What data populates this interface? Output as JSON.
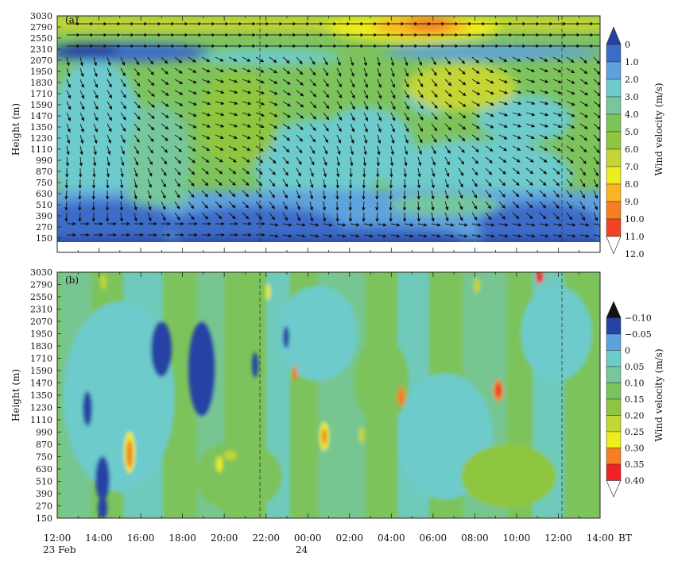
{
  "chart_data": [
    {
      "panel": "(a)",
      "type": "heatmap",
      "variant": "filled contour with wind vectors",
      "ylabel": "Height (m)",
      "y_ticks": [
        150,
        270,
        390,
        510,
        630,
        750,
        870,
        990,
        1110,
        1230,
        1350,
        1470,
        1590,
        1710,
        1830,
        1950,
        2070,
        2310,
        2550,
        2790,
        3030
      ],
      "x_ticks": [
        "12:00",
        "14:00",
        "16:00",
        "18:00",
        "20:00",
        "22:00",
        "00:00",
        "02:00",
        "04:00",
        "06:00",
        "08:00",
        "10:00",
        "12:00",
        "14:00"
      ],
      "x_range_hours": [
        0,
        26
      ],
      "colorbar_label": "Wind velocity (m/s)",
      "colorbar_levels": [
        "0",
        "1.0",
        "2.0",
        "3.0",
        "4.0",
        "5.0",
        "6.0",
        "7.0",
        "8.0",
        "9.0",
        "10.0",
        "11.0",
        "12.0"
      ],
      "colorbar_colors": [
        "#2642a4",
        "#3d6cc8",
        "#5ea2dd",
        "#6dcbcc",
        "#76c79b",
        "#7dc35c",
        "#8ec63f",
        "#c3d635",
        "#eded1f",
        "#f9b522",
        "#f57f22",
        "#ef4423",
        "#ffffff"
      ],
      "vertical_markers_hours": [
        9.9,
        24.5
      ],
      "features": [
        {
          "desc": "weak wind layer near surface",
          "x_hours": [
            0,
            26
          ],
          "y_m": [
            150,
            630
          ],
          "level": "0-1.0"
        },
        {
          "desc": "low wind band aloft",
          "x_hours": [
            0,
            7.5
          ],
          "y_m": [
            2070,
            2310
          ],
          "level": "0-1.0"
        },
        {
          "desc": "wind maximum",
          "x_hours": [
            17.5,
            19.5
          ],
          "y_m": [
            2550,
            3030
          ],
          "level": "10.0-11.0"
        }
      ]
    },
    {
      "panel": "(b)",
      "type": "heatmap",
      "variant": "filled contour",
      "ylabel": "Height (m)",
      "y_ticks": [
        150,
        270,
        390,
        510,
        630,
        750,
        870,
        990,
        1110,
        1230,
        1350,
        1470,
        1590,
        1710,
        1830,
        1950,
        2070,
        2310,
        2550,
        2790,
        3030
      ],
      "x_ticks": [
        "12:00",
        "14:00",
        "16:00",
        "18:00",
        "20:00",
        "22:00",
        "00:00",
        "02:00",
        "04:00",
        "06:00",
        "08:00",
        "10:00",
        "12:00",
        "14:00"
      ],
      "x_range_hours": [
        0,
        26
      ],
      "colorbar_label": "Wind velocity (m/s)",
      "colorbar_levels": [
        "−0.10",
        "−0.05",
        "0",
        "0.05",
        "0.10",
        "0.15",
        "0.20",
        "0.25",
        "0.30",
        "0.35",
        "0.40"
      ],
      "colorbar_colors": [
        "#111111",
        "#2642a4",
        "#5ea2dd",
        "#6dcbcc",
        "#76c79b",
        "#7dc35c",
        "#8ec63f",
        "#c3d635",
        "#eded1f",
        "#f57f22",
        "#ef2323",
        "#ffffff"
      ],
      "vertical_markers_hours": [
        9.9,
        24.5
      ],
      "features": [
        {
          "desc": "negative (downward) cell",
          "x_hours": [
            4.6,
            5.3
          ],
          "y_m": [
            150,
            750
          ],
          "level": "-0.10 to -0.05"
        },
        {
          "desc": "negative (downward) cell",
          "x_hours": [
            4.7,
            5.7
          ],
          "y_m": [
            1470,
            2070
          ],
          "level": "-0.10 to -0.05"
        },
        {
          "desc": "negative (downward) cell",
          "x_hours": [
            6.3,
            7.5
          ],
          "y_m": [
            1110,
            2310
          ],
          "level": "-0.10 to -0.05"
        },
        {
          "desc": "positive (upward) maximum",
          "x_hours": [
            3.5,
            3.8
          ],
          "y_m": [
            630,
            990
          ],
          "level": "0.35-0.40"
        },
        {
          "desc": "positive (upward) maximum",
          "x_hours": [
            12.8,
            13.1
          ],
          "y_m": [
            750,
            990
          ],
          "level": "0.35-0.40"
        },
        {
          "desc": "positive (upward) maximum",
          "x_hours": [
            21.0,
            21.4
          ],
          "y_m": [
            1350,
            1590
          ],
          "level": "0.35-0.40"
        },
        {
          "desc": "positive (upward) maximum",
          "x_hours": [
            23.4,
            23.8
          ],
          "y_m": [
            2790,
            3030
          ],
          "level": "0.35-0.40"
        }
      ]
    }
  ],
  "text": {
    "panel_a": "(a)",
    "panel_b": "(b)",
    "ylabel": "Height (m)",
    "cbar_label": "Wind velocity (m/s)",
    "x_unit": "BT",
    "date_start": "23 Feb",
    "date_next": "24"
  }
}
